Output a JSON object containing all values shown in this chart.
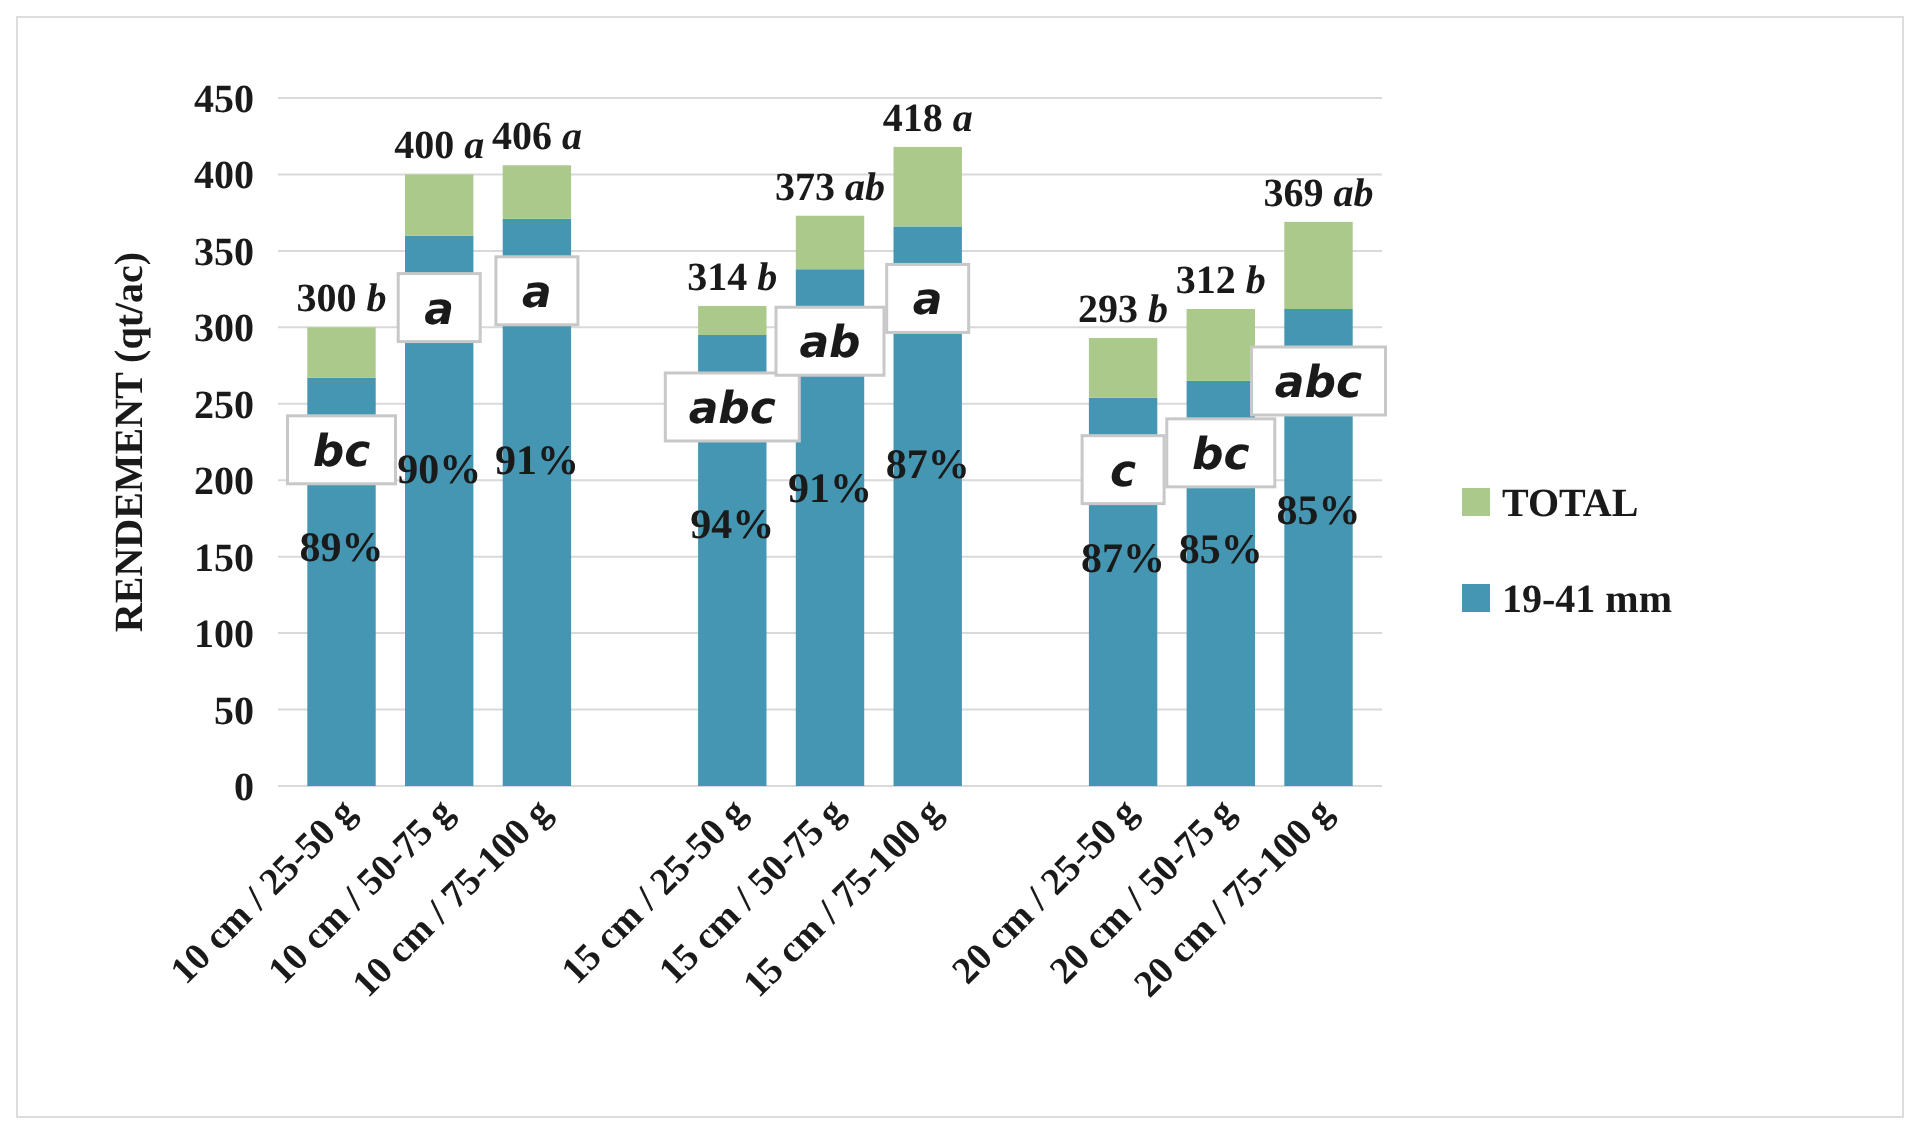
{
  "chart_data": {
    "type": "bar",
    "stacked": true,
    "ylabel": "RENDEMENT (qt/ac)",
    "categories": [
      "10 cm / 25-50 g",
      "10 cm / 50-75 g",
      "10 cm / 75-100 g",
      null,
      "15 cm / 25-50 g",
      "15 cm / 50-75 g",
      "15 cm / 75-100 g",
      null,
      "20 cm / 25-50 g",
      "20 cm / 50-75 g",
      "20 cm / 75-100 g"
    ],
    "series": [
      {
        "name": "19-41 mm",
        "color": "#4596b2",
        "values": [
          267,
          360,
          371,
          null,
          295,
          338,
          366,
          null,
          254,
          265,
          312
        ]
      },
      {
        "name": "TOTAL",
        "color": "#abc98a",
        "values": [
          33,
          40,
          35,
          null,
          19,
          35,
          52,
          null,
          39,
          47,
          57
        ]
      }
    ],
    "totals": [
      "300 b",
      "400 a",
      "406 a",
      null,
      "314 b",
      "373 ab",
      "418 a",
      null,
      "293 b",
      "312 b",
      "369 ab"
    ],
    "annotations": [
      "bc",
      "a",
      "a",
      "abc",
      "ab",
      "a",
      "c",
      "bc",
      "abc",
      "89%",
      "90%",
      "91%",
      "94%",
      "91%",
      "87%",
      "87%",
      "85%",
      "85%"
    ],
    "ylim": [
      0,
      450
    ],
    "yticks": [
      0,
      50,
      100,
      150,
      200,
      250,
      300,
      350,
      400,
      450
    ],
    "grid": "y",
    "legend": "right"
  }
}
